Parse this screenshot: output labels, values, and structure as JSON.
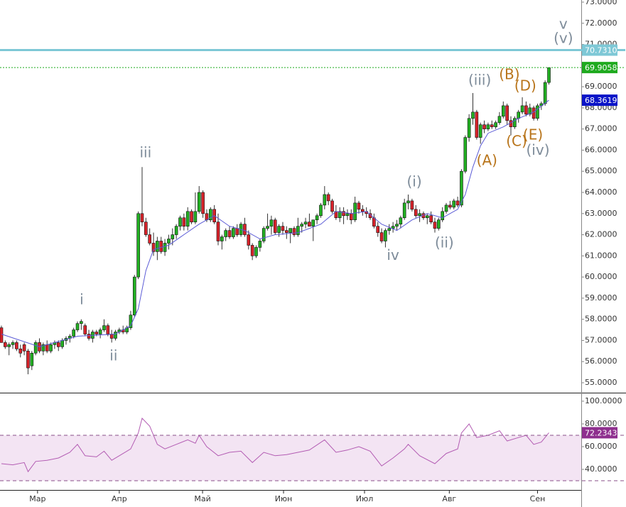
{
  "chart_data": [
    {
      "type": "candlestick",
      "xlim": [
        -0.374,
        152.5
      ],
      "ylim": [
        54.53,
        73.1
      ],
      "up_color": "#22b022",
      "down_color": "#d8222a",
      "yticks": [
        {
          "value": 73,
          "label": "73.0000"
        },
        {
          "value": 72,
          "label": "72.0000"
        },
        {
          "value": 71,
          "label": "71.0000"
        },
        {
          "value": 70,
          "label": "70.0000"
        },
        {
          "value": 69,
          "label": "69.0000"
        },
        {
          "value": 68,
          "label": "68.0000"
        },
        {
          "value": 67,
          "label": "67.0000"
        },
        {
          "value": 66,
          "label": "66.0000"
        },
        {
          "value": 65,
          "label": "65.0000"
        },
        {
          "value": 64,
          "label": "64.0000"
        },
        {
          "value": 63,
          "label": "63.0000"
        },
        {
          "value": 62,
          "label": "62.0000"
        },
        {
          "value": 61,
          "label": "61.0000"
        },
        {
          "value": 60,
          "label": "60.0000"
        },
        {
          "value": 59,
          "label": "59.0000"
        },
        {
          "value": 58,
          "label": "58.0000"
        },
        {
          "value": 57,
          "label": "57.0000"
        },
        {
          "value": 56,
          "label": "56.0000"
        },
        {
          "value": 55,
          "label": "55.0000"
        }
      ],
      "candles": [
        [
          57.6,
          57.7,
          56.9,
          56.9
        ],
        [
          56.9,
          57.0,
          56.6,
          56.7
        ],
        [
          56.7,
          56.9,
          56.3,
          56.8
        ],
        [
          56.8,
          57.0,
          56.6,
          56.9
        ],
        [
          56.9,
          57.0,
          56.5,
          56.6
        ],
        [
          56.6,
          56.8,
          56.2,
          56.4
        ],
        [
          56.8,
          56.9,
          56.3,
          56.5
        ],
        [
          56.5,
          56.6,
          55.4,
          55.7
        ],
        [
          55.8,
          56.5,
          55.6,
          56.4
        ],
        [
          56.4,
          57.0,
          56.3,
          56.9
        ],
        [
          56.9,
          57.1,
          56.4,
          56.5
        ],
        [
          56.5,
          56.9,
          56.3,
          56.8
        ],
        [
          56.8,
          57.0,
          56.4,
          56.5
        ],
        [
          56.5,
          56.9,
          56.4,
          56.8
        ],
        [
          56.8,
          57.0,
          56.6,
          56.9
        ],
        [
          56.9,
          57.0,
          56.5,
          56.7
        ],
        [
          56.7,
          57.1,
          56.6,
          57.0
        ],
        [
          57.0,
          57.2,
          56.8,
          57.1
        ],
        [
          57.1,
          57.3,
          56.9,
          57.2
        ],
        [
          57.2,
          57.6,
          57.1,
          57.5
        ],
        [
          57.5,
          57.9,
          57.4,
          57.8
        ],
        [
          57.8,
          58.0,
          57.5,
          57.9
        ],
        [
          57.7,
          57.8,
          57.2,
          57.3
        ],
        [
          57.3,
          57.5,
          57.0,
          57.1
        ],
        [
          57.1,
          57.5,
          56.9,
          57.4
        ],
        [
          57.4,
          57.5,
          57.2,
          57.3
        ],
        [
          57.3,
          57.6,
          57.1,
          57.5
        ],
        [
          57.5,
          58.0,
          57.4,
          57.7
        ],
        [
          57.7,
          57.8,
          57.2,
          57.3
        ],
        [
          57.3,
          57.5,
          56.9,
          57.1
        ],
        [
          57.1,
          57.5,
          57.0,
          57.4
        ],
        [
          57.4,
          57.6,
          57.3,
          57.5
        ],
        [
          57.5,
          57.7,
          57.3,
          57.4
        ],
        [
          57.4,
          57.7,
          57.3,
          57.6
        ],
        [
          57.6,
          58.4,
          57.5,
          58.2
        ],
        [
          58.2,
          60.1,
          58.1,
          60.0
        ],
        [
          60.0,
          63.1,
          59.9,
          63.0
        ],
        [
          63.0,
          65.2,
          62.4,
          62.6
        ],
        [
          62.6,
          62.8,
          61.9,
          62.0
        ],
        [
          62.0,
          62.3,
          61.5,
          61.6
        ],
        [
          61.6,
          62.1,
          61.0,
          61.2
        ],
        [
          61.2,
          61.9,
          60.8,
          61.7
        ],
        [
          61.7,
          61.9,
          61.1,
          61.2
        ],
        [
          61.2,
          61.8,
          61.0,
          61.6
        ],
        [
          61.6,
          62.0,
          61.3,
          61.8
        ],
        [
          61.8,
          62.3,
          61.5,
          62.0
        ],
        [
          62.0,
          62.5,
          61.8,
          62.4
        ],
        [
          62.4,
          62.9,
          62.2,
          62.8
        ],
        [
          62.8,
          63.0,
          62.2,
          62.4
        ],
        [
          62.4,
          63.3,
          62.2,
          63.1
        ],
        [
          63.1,
          63.2,
          62.5,
          62.6
        ],
        [
          62.6,
          64.0,
          62.5,
          63.1
        ],
        [
          63.1,
          64.3,
          63.0,
          64.0
        ],
        [
          64.0,
          64.1,
          62.8,
          63.0
        ],
        [
          63.0,
          63.2,
          62.6,
          62.7
        ],
        [
          62.7,
          63.3,
          62.6,
          63.2
        ],
        [
          63.2,
          63.4,
          62.5,
          62.6
        ],
        [
          62.6,
          63.0,
          61.5,
          61.7
        ],
        [
          61.7,
          62.0,
          61.3,
          61.9
        ],
        [
          61.9,
          62.3,
          61.7,
          62.2
        ],
        [
          62.2,
          62.4,
          61.8,
          61.9
        ],
        [
          61.9,
          62.4,
          61.8,
          62.3
        ],
        [
          62.3,
          62.5,
          61.9,
          62.0
        ],
        [
          62.0,
          62.6,
          61.9,
          62.5
        ],
        [
          62.5,
          62.8,
          61.9,
          62.0
        ],
        [
          62.0,
          62.2,
          61.3,
          61.5
        ],
        [
          61.5,
          61.6,
          60.8,
          61.0
        ],
        [
          61.0,
          61.5,
          60.9,
          61.4
        ],
        [
          61.4,
          61.8,
          61.2,
          61.7
        ],
        [
          61.7,
          62.4,
          61.6,
          62.3
        ],
        [
          62.3,
          63.0,
          62.2,
          62.4
        ],
        [
          62.4,
          62.9,
          62.0,
          62.7
        ],
        [
          62.7,
          62.8,
          62.0,
          62.1
        ],
        [
          62.1,
          62.5,
          61.9,
          62.4
        ],
        [
          62.4,
          62.6,
          62.0,
          62.2
        ],
        [
          62.2,
          62.4,
          61.8,
          62.1
        ],
        [
          62.1,
          62.3,
          61.6,
          62.3
        ],
        [
          62.3,
          62.4,
          61.9,
          62.0
        ],
        [
          62.0,
          62.8,
          61.9,
          62.4
        ],
        [
          62.4,
          62.6,
          62.1,
          62.5
        ],
        [
          62.5,
          62.8,
          62.3,
          62.6
        ],
        [
          62.6,
          63.0,
          62.4,
          62.4
        ],
        [
          62.4,
          62.7,
          61.7,
          62.7
        ],
        [
          62.7,
          63.0,
          62.5,
          62.9
        ],
        [
          62.9,
          63.5,
          62.8,
          63.4
        ],
        [
          63.4,
          64.3,
          63.2,
          63.9
        ],
        [
          63.9,
          64.0,
          63.4,
          63.6
        ],
        [
          63.6,
          63.7,
          63.0,
          63.1
        ],
        [
          63.1,
          63.4,
          62.7,
          62.8
        ],
        [
          62.8,
          63.3,
          62.6,
          63.1
        ],
        [
          63.1,
          63.3,
          62.5,
          62.9
        ],
        [
          62.9,
          63.2,
          62.7,
          63.0
        ],
        [
          63.0,
          63.2,
          62.5,
          62.7
        ],
        [
          62.7,
          63.8,
          62.6,
          63.5
        ],
        [
          63.5,
          63.6,
          63.0,
          63.2
        ],
        [
          63.2,
          63.4,
          62.9,
          63.1
        ],
        [
          63.1,
          63.3,
          62.8,
          63.0
        ],
        [
          63.0,
          63.2,
          62.7,
          62.8
        ],
        [
          62.8,
          63.0,
          62.3,
          62.4
        ],
        [
          62.4,
          62.6,
          61.9,
          62.1
        ],
        [
          62.1,
          62.3,
          61.6,
          61.7
        ],
        [
          61.7,
          62.3,
          61.4,
          62.2
        ],
        [
          62.2,
          62.5,
          62.0,
          62.3
        ],
        [
          62.3,
          62.6,
          62.1,
          62.4
        ],
        [
          62.4,
          62.7,
          62.2,
          62.5
        ],
        [
          62.5,
          62.9,
          62.3,
          62.8
        ],
        [
          62.8,
          63.7,
          62.7,
          63.5
        ],
        [
          63.5,
          63.9,
          63.2,
          63.6
        ],
        [
          63.6,
          63.7,
          63.1,
          63.2
        ],
        [
          63.2,
          63.4,
          62.8,
          62.9
        ],
        [
          62.9,
          63.2,
          62.6,
          63.0
        ],
        [
          63.0,
          63.1,
          62.7,
          62.8
        ],
        [
          62.8,
          63.0,
          62.5,
          62.9
        ],
        [
          62.9,
          63.1,
          62.5,
          62.6
        ],
        [
          62.6,
          62.8,
          62.1,
          62.3
        ],
        [
          62.3,
          62.8,
          62.2,
          62.7
        ],
        [
          62.7,
          63.3,
          62.6,
          63.1
        ],
        [
          63.1,
          63.5,
          63.0,
          63.4
        ],
        [
          63.4,
          63.6,
          63.2,
          63.3
        ],
        [
          63.3,
          63.7,
          63.2,
          63.6
        ],
        [
          63.6,
          63.8,
          63.3,
          63.4
        ],
        [
          63.4,
          65.1,
          63.3,
          65.0
        ],
        [
          65.0,
          66.7,
          64.9,
          66.6
        ],
        [
          66.6,
          67.7,
          66.4,
          67.5
        ],
        [
          67.5,
          68.7,
          67.2,
          67.8
        ],
        [
          67.8,
          67.9,
          66.5,
          66.6
        ],
        [
          66.6,
          67.3,
          66.3,
          67.2
        ],
        [
          67.2,
          67.4,
          66.8,
          67.0
        ],
        [
          67.0,
          67.3,
          66.9,
          67.2
        ],
        [
          67.2,
          67.4,
          67.0,
          67.1
        ],
        [
          67.1,
          67.4,
          67.0,
          67.3
        ],
        [
          67.3,
          67.8,
          67.2,
          67.6
        ],
        [
          67.6,
          68.3,
          67.5,
          68.1
        ],
        [
          68.1,
          68.2,
          67.2,
          67.4
        ],
        [
          67.4,
          67.6,
          66.7,
          67.1
        ],
        [
          67.1,
          67.6,
          67.0,
          67.5
        ],
        [
          67.5,
          67.9,
          67.3,
          67.8
        ],
        [
          67.8,
          68.5,
          67.7,
          68.1
        ],
        [
          68.1,
          68.3,
          67.6,
          67.7
        ],
        [
          67.7,
          68.2,
          67.6,
          68.0
        ],
        [
          68.0,
          68.1,
          67.4,
          67.5
        ],
        [
          67.5,
          68.2,
          67.4,
          68.1
        ],
        [
          68.1,
          68.3,
          67.9,
          68.2
        ],
        [
          68.2,
          69.3,
          68.1,
          69.2
        ],
        [
          69.2,
          69.9,
          69.1,
          69.9
        ]
      ],
      "ma": {
        "color": "#5a5ad6",
        "label_color": "#0a14c8",
        "x": [
          0,
          10,
          20,
          30,
          34,
          36,
          38,
          40,
          44,
          48,
          52,
          56,
          60,
          64,
          68,
          72,
          78,
          84,
          88,
          92,
          96,
          100,
          104,
          108,
          112,
          116,
          120,
          122,
          124,
          126,
          128,
          132,
          136,
          140,
          144
        ],
        "values": [
          57.3,
          56.7,
          57.2,
          57.3,
          57.7,
          58.5,
          60.3,
          61.3,
          61.5,
          62.0,
          62.5,
          62.9,
          62.4,
          62.2,
          61.8,
          62.0,
          62.1,
          62.5,
          63.1,
          63.0,
          63.1,
          62.5,
          62.2,
          62.7,
          63.0,
          62.8,
          63.2,
          63.9,
          65.2,
          66.2,
          66.8,
          67.1,
          67.5,
          67.8,
          68.3619
        ]
      },
      "levels": [
        {
          "value": 70.731,
          "label": "70.7310",
          "color": "#7ec8d6",
          "style": "solid"
        },
        {
          "value": 69.9058,
          "label": "69.9058",
          "color": "#1faa1f",
          "style": "dotted"
        }
      ],
      "annotations": [
        {
          "text": "i",
          "x": 21.1,
          "y": 58.9,
          "color": "#7d8b99"
        },
        {
          "text": "ii",
          "x": 29.5,
          "y": 56.24,
          "color": "#7d8b99"
        },
        {
          "text": "iii",
          "x": 37.9,
          "y": 65.85,
          "color": "#7d8b99"
        },
        {
          "text": "iv",
          "x": 103,
          "y": 61.0,
          "color": "#7d8b99"
        },
        {
          "text": "(i)",
          "x": 108.6,
          "y": 64.47,
          "color": "#7d8b99"
        },
        {
          "text": "(ii)",
          "x": 116.5,
          "y": 61.58,
          "color": "#7d8b99"
        },
        {
          "text": "(iii)",
          "x": 125.8,
          "y": 69.27,
          "color": "#7d8b99"
        },
        {
          "text": "(A)",
          "x": 127.7,
          "y": 65.48,
          "color": "#b8741a"
        },
        {
          "text": "(B)",
          "x": 133.6,
          "y": 69.54,
          "color": "#b8741a"
        },
        {
          "text": "(C)",
          "x": 135.5,
          "y": 66.38,
          "color": "#b8741a"
        },
        {
          "text": "(D)",
          "x": 137.8,
          "y": 69.0,
          "color": "#b8741a"
        },
        {
          "text": "(E)",
          "x": 139.8,
          "y": 66.68,
          "color": "#b8741a"
        },
        {
          "text": "(iv)",
          "x": 141.1,
          "y": 65.97,
          "color": "#7d8b99"
        },
        {
          "text": "(v)",
          "x": 147.8,
          "y": 71.26,
          "color": "#7d8b99"
        },
        {
          "text": "v",
          "x": 147.8,
          "y": 71.93,
          "color": "#7d8b99"
        }
      ]
    },
    {
      "type": "line",
      "xlim": [
        -0.374,
        152.5
      ],
      "ylim": [
        21.9,
        105.6
      ],
      "color": "#b35cb3",
      "label_color": "#8e2f8e",
      "band": [
        30,
        70
      ],
      "band_color": "#f3e4f3",
      "yticks": [
        {
          "value": 100,
          "label": "100.0000"
        },
        {
          "value": 80,
          "label": "80.0000"
        },
        {
          "value": 60,
          "label": "60.0000"
        },
        {
          "value": 40,
          "label": "40.0000"
        }
      ],
      "xticks": [
        {
          "value": 9.5,
          "label": "Мар"
        },
        {
          "value": 31,
          "label": "Апр"
        },
        {
          "value": 52.9,
          "label": "Май"
        },
        {
          "value": 74.2,
          "label": "Июн"
        },
        {
          "value": 95.5,
          "label": "Июл"
        },
        {
          "value": 117.8,
          "label": "Авг"
        },
        {
          "value": 141,
          "label": "Сен"
        }
      ],
      "x": [
        0,
        3,
        6,
        7,
        9,
        12,
        15,
        18,
        20,
        22,
        25,
        27,
        29,
        31,
        34,
        36,
        37,
        39,
        41,
        43,
        46,
        49,
        51,
        52,
        54,
        57,
        60,
        63,
        66,
        69,
        72,
        75,
        78,
        81,
        85,
        88,
        91,
        94,
        97,
        100,
        103,
        106,
        107,
        110,
        114,
        117,
        120,
        121,
        123,
        125,
        128,
        131,
        133,
        136,
        138,
        140,
        142,
        144
      ],
      "values": [
        45,
        44,
        46,
        38,
        47,
        48,
        50,
        55,
        62,
        52,
        51,
        56,
        48,
        52,
        58,
        72,
        85,
        78,
        62,
        58,
        62,
        66,
        63,
        70,
        60,
        52,
        55,
        56,
        46,
        55,
        52,
        53,
        55,
        57,
        66,
        55,
        57,
        60,
        56,
        43,
        50,
        58,
        62,
        52,
        45,
        54,
        58,
        72,
        80,
        68,
        70,
        74,
        65,
        68,
        70,
        62,
        64,
        72.2343
      ]
    }
  ]
}
